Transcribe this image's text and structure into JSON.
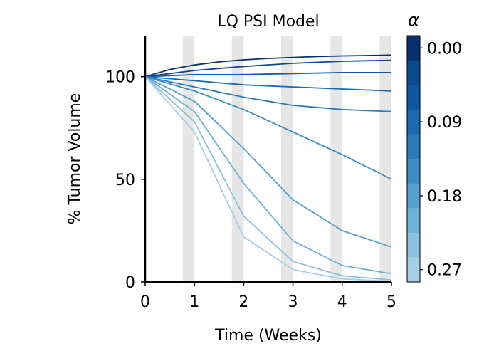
{
  "chart_data": {
    "type": "line",
    "title": "LQ PSI Model",
    "xlabel": "Time (Weeks)",
    "ylabel": "% Tumor Volume",
    "xlim": [
      0,
      5
    ],
    "ylim": [
      0,
      120
    ],
    "x_ticks": [
      "0",
      "1",
      "2",
      "3",
      "4",
      "5"
    ],
    "y_ticks": [
      "0",
      "50",
      "100"
    ],
    "treatment_windows_weeks": [
      [
        0.76,
        1.0
      ],
      [
        1.76,
        2.0
      ],
      [
        2.76,
        3.0
      ],
      [
        3.76,
        4.0
      ],
      [
        4.76,
        5.0
      ]
    ],
    "colorbar": {
      "label": "α",
      "range": [
        0.0,
        0.3
      ],
      "levels": 10,
      "tick_labels": [
        "0.00",
        "0.09",
        "0.18",
        "0.27"
      ],
      "tick_values": [
        0.0,
        0.09,
        0.18,
        0.27
      ],
      "colors": [
        "#08306b",
        "#0b4a8f",
        "#0e58a2",
        "#1b69af",
        "#2b7bba",
        "#3d8dc4",
        "#56a0ce",
        "#6fb0d7",
        "#8cc0dd",
        "#a8cee4"
      ]
    },
    "series": [
      {
        "alpha": 0.0,
        "color": "#08306b",
        "x": [
          0,
          0.5,
          1,
          1.5,
          2,
          2.5,
          3,
          3.5,
          4,
          4.5,
          5
        ],
        "y": [
          100,
          103.5,
          105.7,
          107.2,
          108.2,
          108.9,
          109.4,
          109.8,
          110.1,
          110.3,
          110.5
        ]
      },
      {
        "alpha": 0.03,
        "color": "#0b4a8f",
        "x": [
          0,
          1,
          2,
          3,
          4,
          5
        ],
        "y": [
          100,
          103,
          105,
          106.5,
          107.5,
          108
        ]
      },
      {
        "alpha": 0.06,
        "color": "#0e58a2",
        "x": [
          0,
          1,
          2,
          3,
          4,
          5
        ],
        "y": [
          100,
          101,
          101,
          101.5,
          102,
          102
        ]
      },
      {
        "alpha": 0.09,
        "color": "#1b69af",
        "x": [
          0,
          1,
          2,
          3,
          4,
          5
        ],
        "y": [
          100,
          98,
          96,
          95,
          94,
          93
        ]
      },
      {
        "alpha": 0.12,
        "color": "#2b7bba",
        "x": [
          0,
          1,
          2,
          3,
          4,
          5
        ],
        "y": [
          100,
          95,
          90,
          86,
          84,
          83
        ]
      },
      {
        "alpha": 0.15,
        "color": "#3d8dc4",
        "x": [
          0,
          1,
          2,
          3,
          4,
          5
        ],
        "y": [
          100,
          93,
          84,
          73,
          62,
          50
        ]
      },
      {
        "alpha": 0.18,
        "color": "#56a0ce",
        "x": [
          0,
          1,
          2,
          3,
          4,
          5
        ],
        "y": [
          100,
          88,
          65,
          40,
          25,
          17
        ]
      },
      {
        "alpha": 0.21,
        "color": "#6fb0d7",
        "x": [
          0,
          1,
          2,
          3,
          4,
          5
        ],
        "y": [
          100,
          83,
          48,
          20,
          8,
          4
        ]
      },
      {
        "alpha": 0.24,
        "color": "#8cc0dd",
        "x": [
          0,
          1,
          2,
          3,
          4,
          5
        ],
        "y": [
          100,
          78,
          32,
          10,
          3,
          1
        ]
      },
      {
        "alpha": 0.27,
        "color": "#a8cee4",
        "x": [
          0,
          1,
          2,
          3,
          4,
          5
        ],
        "y": [
          100,
          73,
          22,
          6,
          1.5,
          0.3
        ]
      }
    ]
  }
}
